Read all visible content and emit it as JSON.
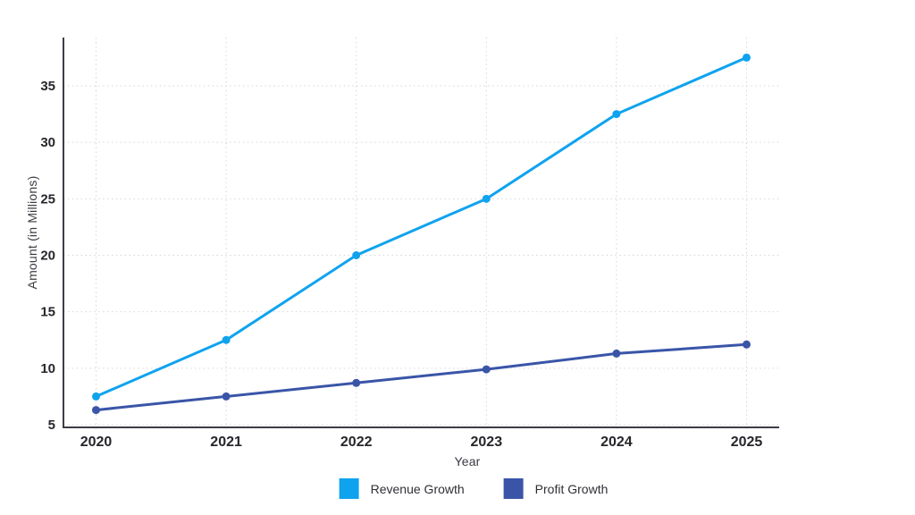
{
  "chart_data": {
    "type": "line",
    "title": "",
    "xlabel": "Year",
    "ylabel": "Amount (in Millions)",
    "x": [
      "2020",
      "2021",
      "2022",
      "2023",
      "2024",
      "2025"
    ],
    "series": [
      {
        "name": "Revenue Growth",
        "color": "#0FA3EE",
        "values": [
          7.5,
          12.5,
          20,
          25,
          32.5,
          37.5
        ]
      },
      {
        "name": "Profit Growth",
        "color": "#3A55A8",
        "values": [
          6.3,
          7.5,
          8.7,
          9.9,
          11.3,
          12.1
        ]
      }
    ],
    "yticks": [
      5,
      10,
      15,
      20,
      25,
      30,
      35
    ],
    "ylim": [
      5,
      39.3
    ],
    "grid": "dotted",
    "legend_position": "bottom",
    "colors": {
      "grid": "#d6d6de",
      "axis": "#3d3d47",
      "tick_text": "#26262b",
      "background": "#ffffff"
    }
  }
}
